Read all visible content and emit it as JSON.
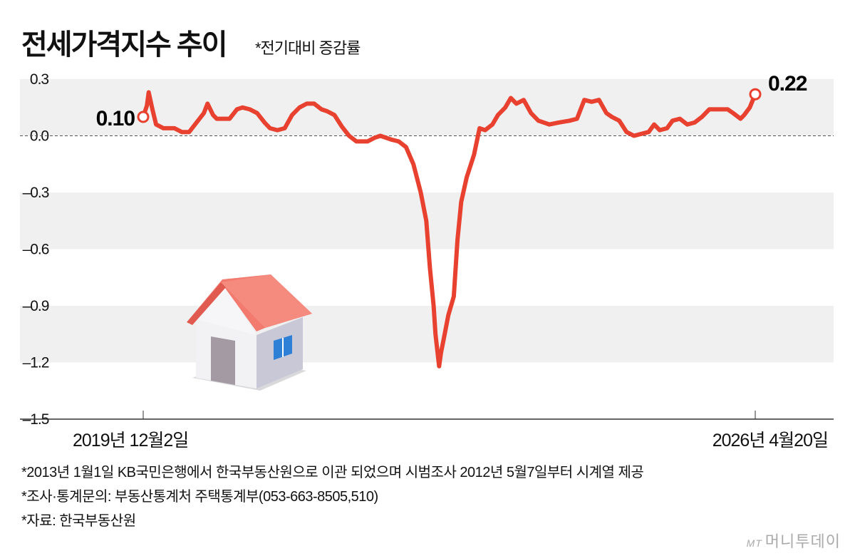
{
  "header": {
    "title": "전세가격지수 추이",
    "subtitle": "*전기대비 증감률"
  },
  "chart_data": {
    "type": "line",
    "title": "전세가격지수 추이",
    "subtitle": "*전기대비 증감률",
    "xlabel": "",
    "ylabel": "",
    "x_unit": "weeks since 2019-12-02",
    "ylim": [
      -1.5,
      0.3
    ],
    "yticks": [
      0.3,
      0.0,
      -0.3,
      -0.6,
      -0.9,
      -1.2,
      -1.5
    ],
    "ytick_labels": [
      "0.3",
      "0.0",
      "–0.3",
      "–0.6",
      "–0.9",
      "–1.2",
      "–1.5"
    ],
    "xtick_labels": [
      "2019년 12월2일",
      "2026년 4월20일"
    ],
    "xlim": [
      0,
      333
    ],
    "grid": "alternating horizontal bands",
    "color": "#e8412f",
    "annotations": [
      {
        "x": 0,
        "y": 0.1,
        "label": "0.10"
      },
      {
        "x": 333,
        "y": 0.22,
        "label": "0.22"
      }
    ],
    "series": [
      {
        "name": "전세가격지수 증감률",
        "x": [
          0,
          2,
          3,
          5,
          7,
          11,
          17,
          21,
          25,
          29,
          33,
          35,
          38,
          40,
          44,
          47,
          51,
          54,
          58,
          62,
          66,
          69,
          73,
          77,
          81,
          85,
          89,
          93,
          97,
          100,
          104,
          108,
          112,
          116,
          122,
          126,
          129,
          135,
          139,
          143,
          147,
          151,
          154,
          156,
          158,
          159,
          161,
          162,
          164,
          166,
          169,
          171,
          173,
          176,
          180,
          183,
          186,
          190,
          193,
          197,
          200,
          203,
          207,
          211,
          215,
          221,
          226,
          232,
          236,
          240,
          244,
          248,
          252,
          255,
          259,
          263,
          267,
          271,
          275,
          278,
          281,
          285,
          288,
          292,
          296,
          300,
          304,
          308,
          314,
          318,
          321,
          325,
          327,
          330,
          333
        ],
        "y": [
          0.1,
          0.16,
          0.23,
          0.14,
          0.06,
          0.04,
          0.04,
          0.02,
          0.02,
          0.07,
          0.12,
          0.17,
          0.11,
          0.09,
          0.09,
          0.09,
          0.14,
          0.15,
          0.14,
          0.12,
          0.07,
          0.04,
          0.03,
          0.04,
          0.11,
          0.15,
          0.17,
          0.17,
          0.14,
          0.13,
          0.11,
          0.05,
          0.0,
          -0.03,
          -0.03,
          -0.01,
          0.0,
          -0.02,
          -0.03,
          -0.06,
          -0.15,
          -0.3,
          -0.45,
          -0.7,
          -0.9,
          -1.05,
          -1.22,
          -1.15,
          -1.05,
          -0.95,
          -0.85,
          -0.55,
          -0.35,
          -0.22,
          -0.1,
          0.04,
          0.03,
          0.06,
          0.11,
          0.15,
          0.2,
          0.17,
          0.19,
          0.12,
          0.08,
          0.06,
          0.07,
          0.08,
          0.09,
          0.19,
          0.18,
          0.19,
          0.12,
          0.1,
          0.08,
          0.02,
          0.0,
          0.01,
          0.02,
          0.06,
          0.03,
          0.04,
          0.08,
          0.09,
          0.06,
          0.07,
          0.1,
          0.14,
          0.14,
          0.14,
          0.12,
          0.09,
          0.11,
          0.15,
          0.22
        ]
      }
    ]
  },
  "notes": [
    "*2013년 1월1일 KB국민은행에서 한국부동산원으로 이관 되었으며 시범조사 2012년 5월7일부터 시계열 제공",
    "*조사·통계문의: 부동산통계처 주택통계부(053-663-8505,510)",
    "*자료: 한국부동산원"
  ],
  "logo": {
    "mark": "MT",
    "name": "머니투데이"
  }
}
